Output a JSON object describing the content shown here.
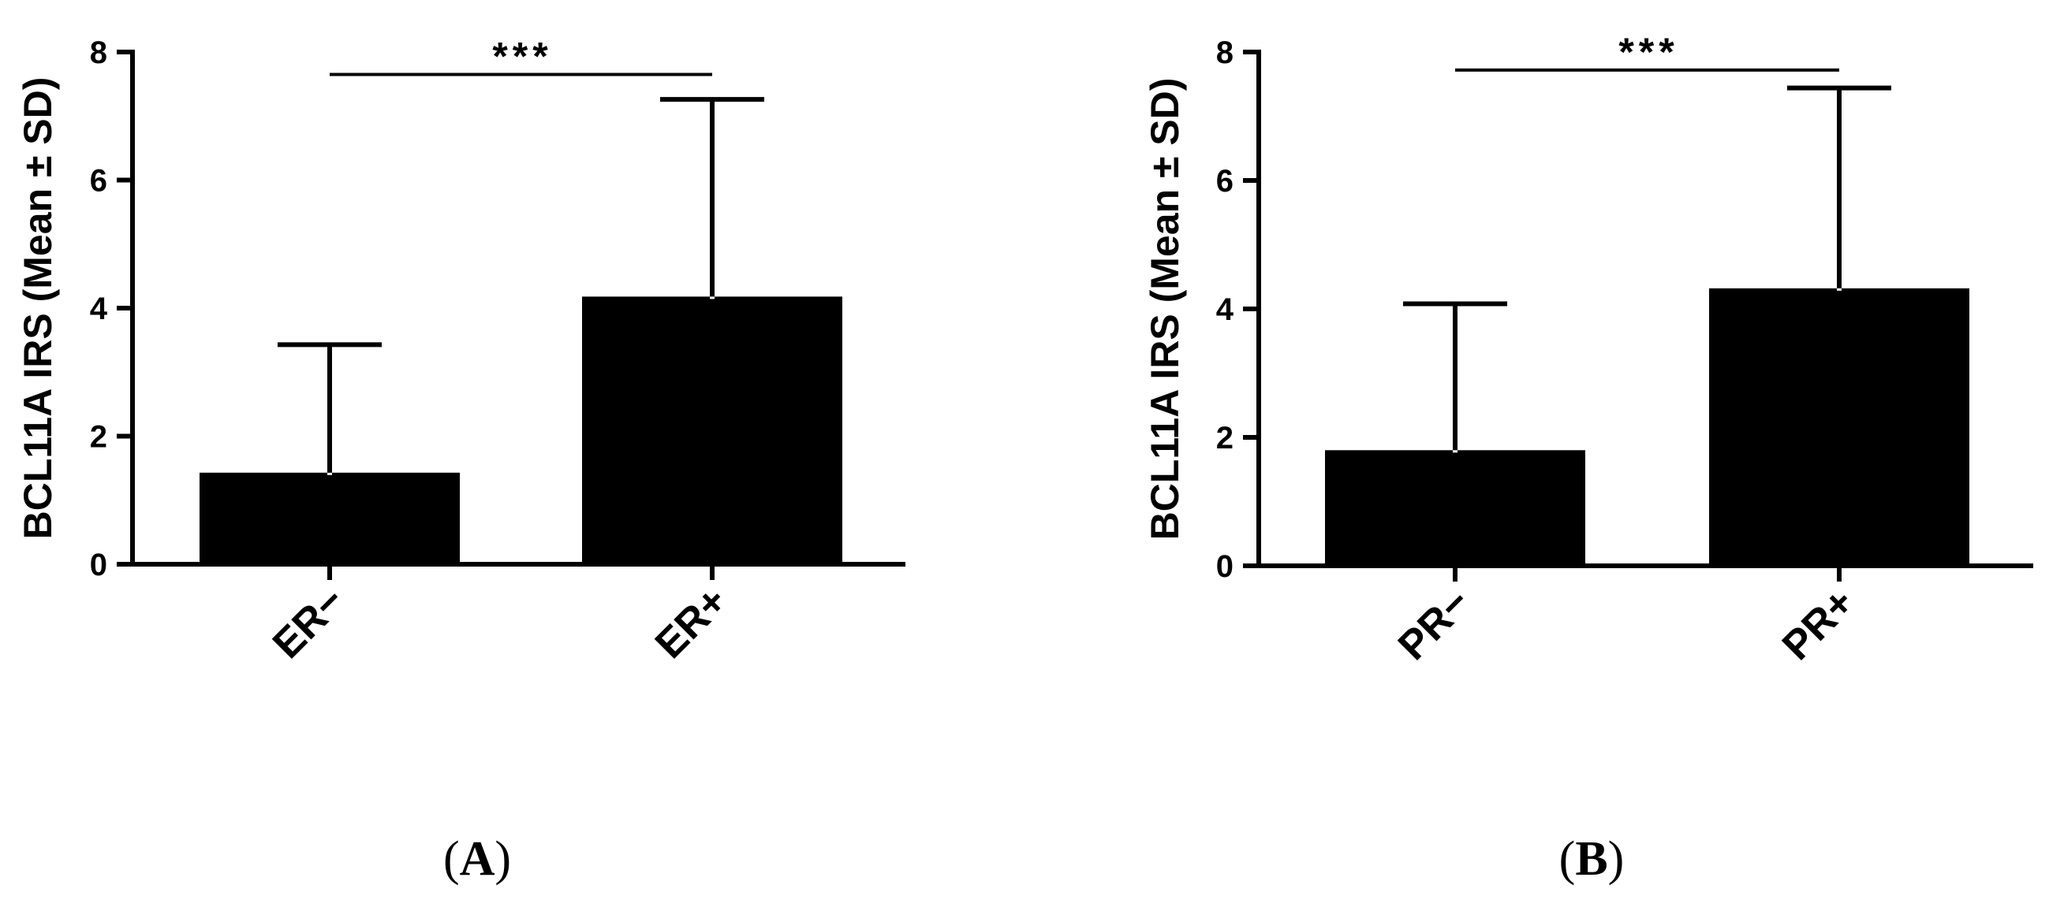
{
  "chart_data": [
    {
      "type": "bar",
      "panel_label": "A",
      "ylabel": "BCL11A IRS (Mean ± SD)",
      "xlabel": "",
      "categories": [
        "ER−",
        "ER+"
      ],
      "values": [
        1.43,
        4.18
      ],
      "error_sd": [
        2.0,
        3.08
      ],
      "ylim": [
        0,
        8
      ],
      "yticks": [
        "0",
        "2",
        "4",
        "6",
        "8"
      ],
      "significance": {
        "between": [
          0,
          1
        ],
        "label": "***",
        "y": 7.65
      },
      "bar_color": "#000000",
      "grid": false,
      "legend": "none"
    },
    {
      "type": "bar",
      "panel_label": "B",
      "ylabel": "BCL11A IRS (Mean ± SD)",
      "xlabel": "",
      "categories": [
        "PR−",
        "PR+"
      ],
      "values": [
        1.8,
        4.32
      ],
      "error_sd": [
        2.28,
        3.12
      ],
      "ylim": [
        0,
        8
      ],
      "yticks": [
        "0",
        "2",
        "4",
        "6",
        "8"
      ],
      "significance": {
        "between": [
          0,
          1
        ],
        "label": "***",
        "y": 7.72
      },
      "bar_color": "#000000",
      "grid": false,
      "legend": "none"
    }
  ]
}
